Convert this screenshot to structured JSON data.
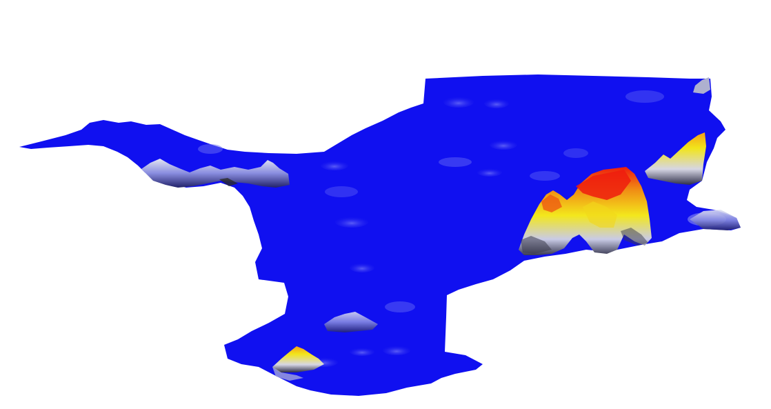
{
  "map": {
    "type": "3d-surface-map",
    "background": "#ffffff",
    "colors": {
      "base": "#1010f0",
      "low": "#c8cbe6",
      "mid": "#f2e51a",
      "high": "#ee1c0e",
      "edge": "#2a2a2a"
    },
    "peaks": [
      {
        "name": "east-main-peak",
        "level": "high"
      },
      {
        "name": "east-west-peak",
        "level": "mid-high"
      },
      {
        "name": "northeast-peak",
        "level": "mid"
      },
      {
        "name": "south-peak",
        "level": "mid"
      },
      {
        "name": "west-ridge",
        "level": "low"
      },
      {
        "name": "south-central-bump",
        "level": "low"
      },
      {
        "name": "east-edge-bump",
        "level": "low"
      }
    ]
  }
}
